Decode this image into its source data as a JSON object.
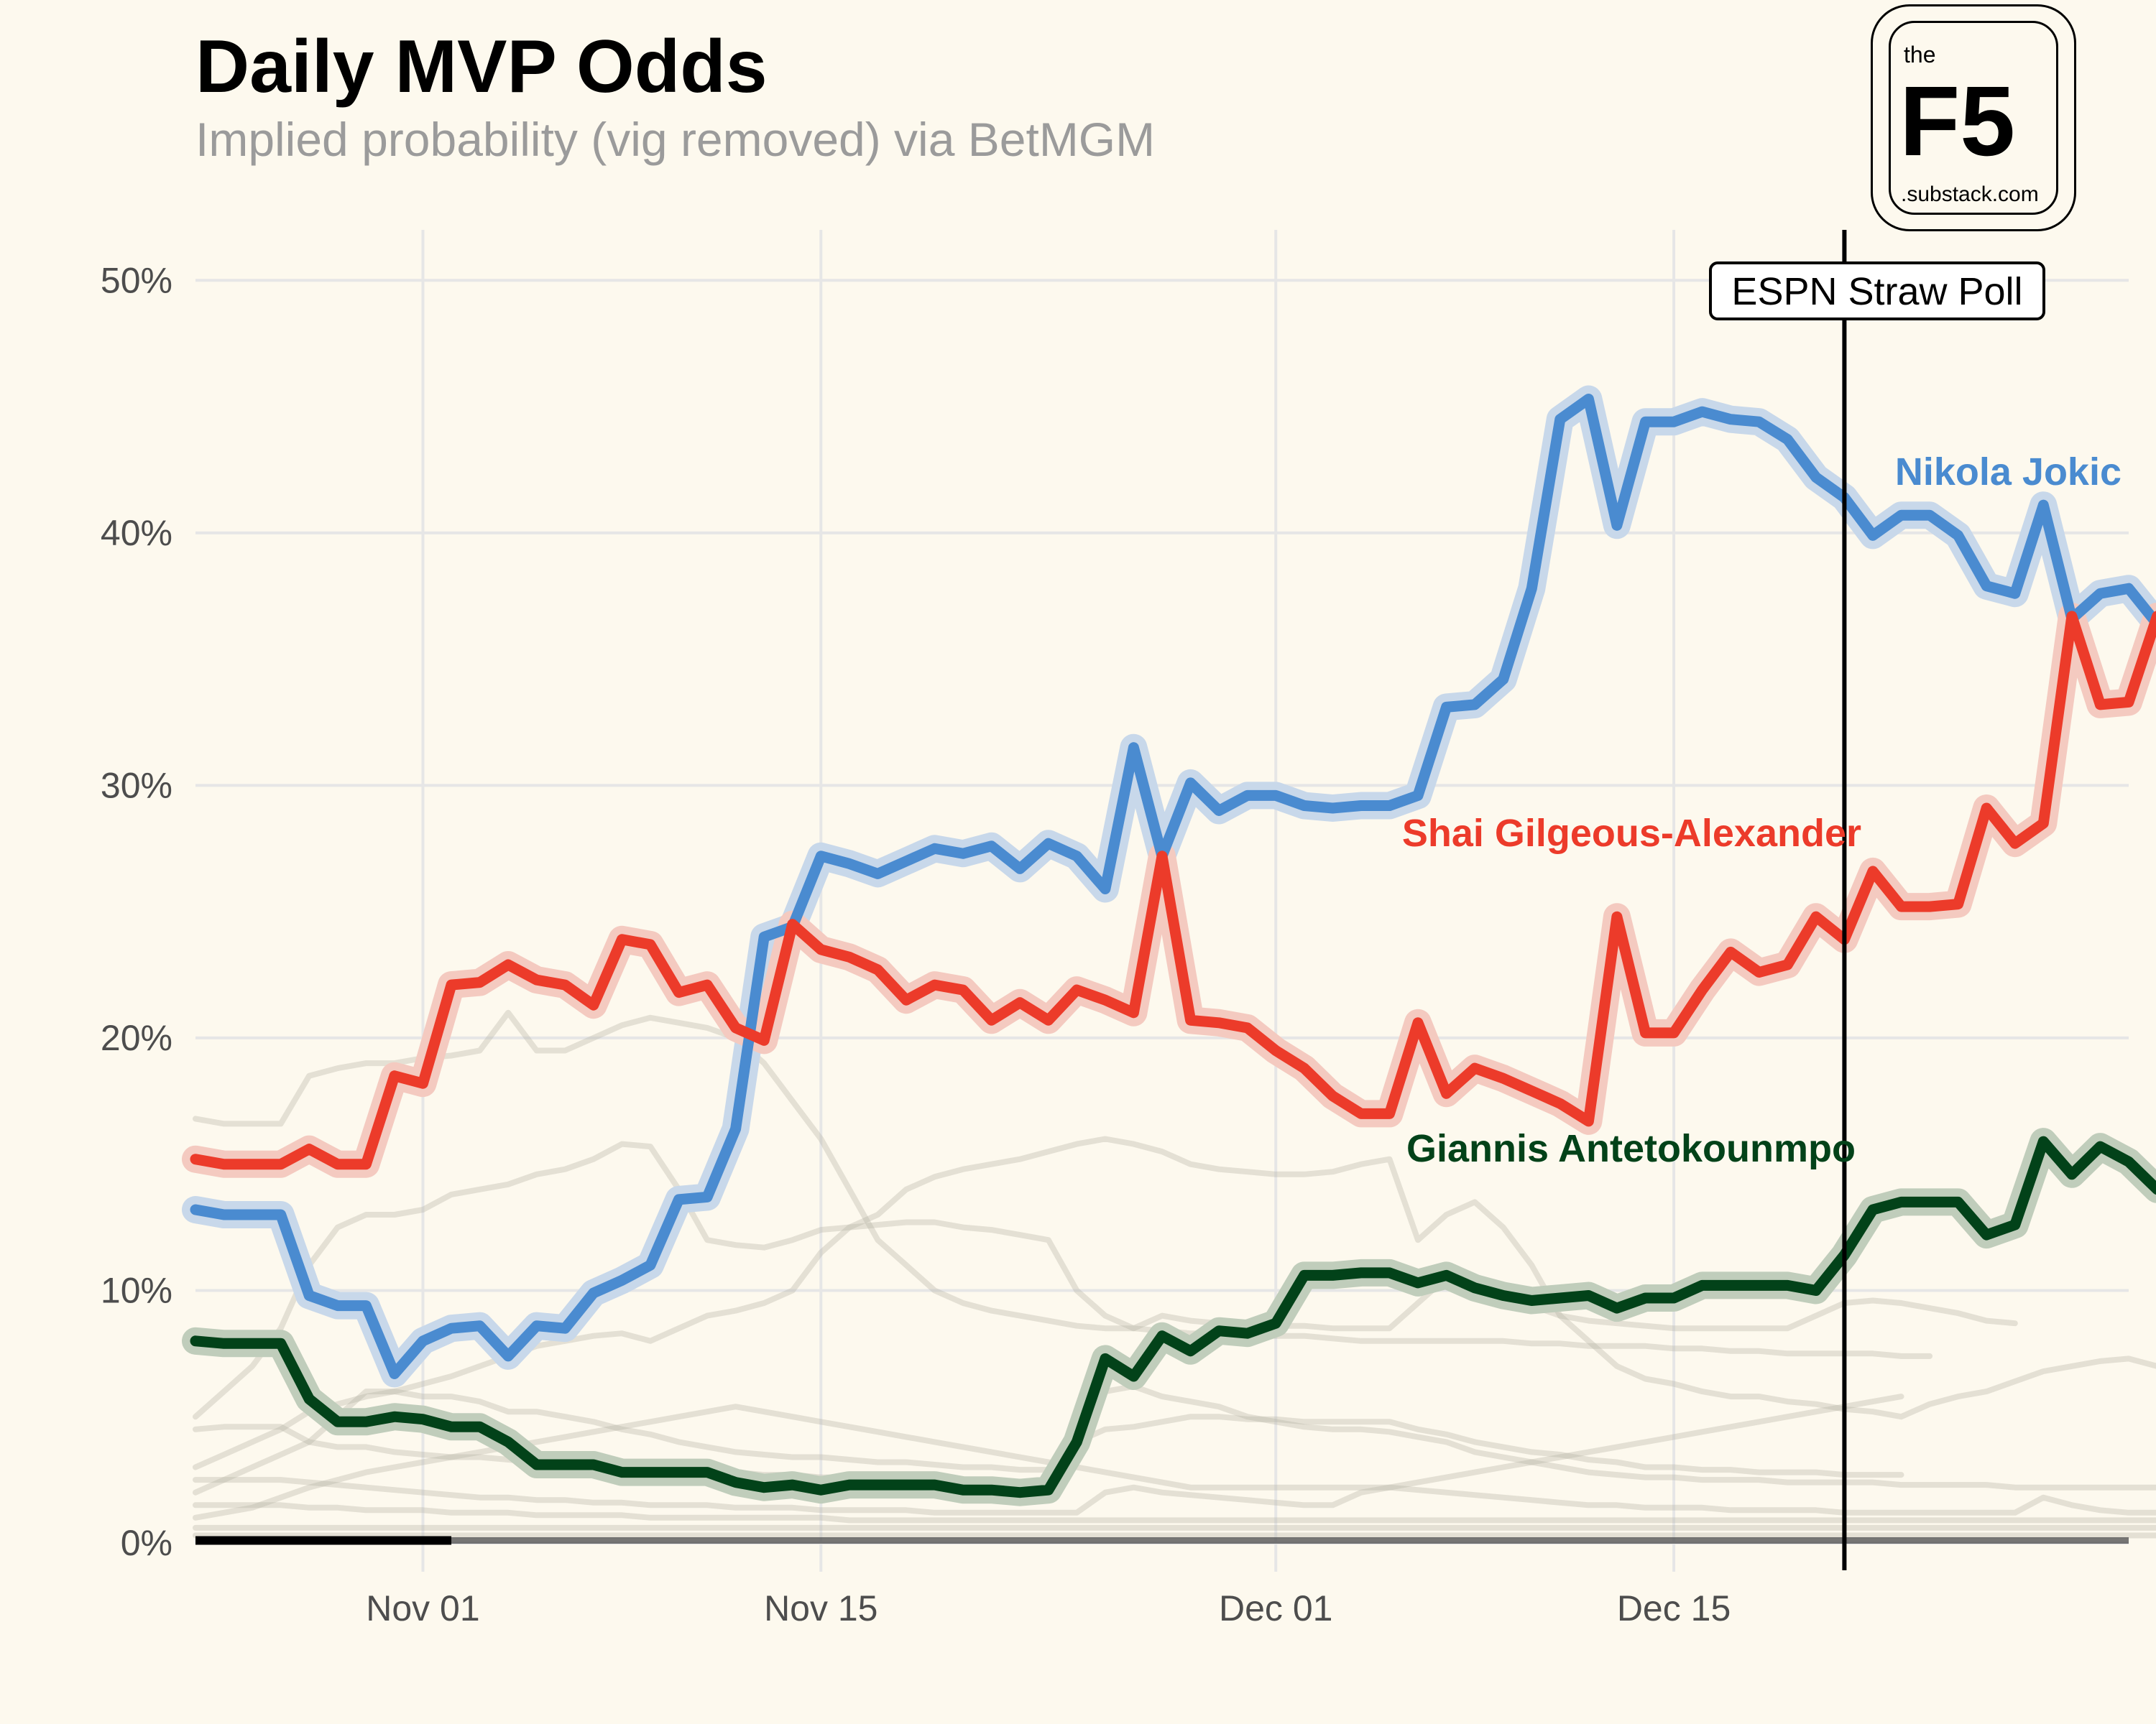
{
  "title": "Daily MVP Odds",
  "subtitle": "Implied probability (vig removed) via BetMGM",
  "logo": {
    "the": "the",
    "f5": "F5",
    "sub": ".substack.com"
  },
  "chart_data": {
    "type": "line",
    "title": "Daily MVP Odds",
    "subtitle": "Implied probability (vig removed) via BetMGM",
    "xlabel": "",
    "ylabel": "",
    "x_start": "2023-10-24",
    "xlim": [
      "2023-10-24",
      "2023-12-31"
    ],
    "ylim": [
      0,
      0.52
    ],
    "x_ticks": [
      {
        "date": "2023-11-01",
        "label": "Nov 01"
      },
      {
        "date": "2023-11-15",
        "label": "Nov 15"
      },
      {
        "date": "2023-12-01",
        "label": "Dec 01"
      },
      {
        "date": "2023-12-15",
        "label": "Dec 15"
      }
    ],
    "y_ticks": [
      {
        "value": 0,
        "label": "0%"
      },
      {
        "value": 0.1,
        "label": "10%"
      },
      {
        "value": 0.2,
        "label": "20%"
      },
      {
        "value": 0.3,
        "label": "30%"
      },
      {
        "value": 0.4,
        "label": "40%"
      },
      {
        "value": 0.5,
        "label": "50%"
      }
    ],
    "grid": true,
    "vline": {
      "date": "2023-12-21",
      "label": "ESPN Straw Poll"
    },
    "series": [
      {
        "name": "Nikola Jokic",
        "color": "#4a8bd0",
        "halo": "#c8d8ea",
        "values": [
          0.132,
          0.13,
          0.13,
          0.13,
          0.098,
          0.094,
          0.094,
          0.067,
          0.08,
          0.085,
          0.086,
          0.074,
          0.086,
          0.085,
          0.099,
          0.104,
          0.11,
          0.136,
          0.137,
          0.164,
          0.24,
          0.244,
          0.272,
          0.269,
          0.265,
          0.27,
          0.275,
          0.273,
          0.276,
          0.267,
          0.277,
          0.272,
          0.259,
          0.315,
          0.272,
          0.301,
          0.29,
          0.296,
          0.296,
          0.292,
          0.291,
          0.292,
          0.292,
          0.296,
          0.331,
          0.332,
          0.342,
          0.378,
          0.445,
          0.453,
          0.403,
          0.444,
          0.444,
          0.448,
          0.445,
          0.444,
          0.437,
          0.422,
          0.414,
          0.399,
          0.407,
          0.407,
          0.399,
          0.379,
          0.376,
          0.411,
          0.366,
          0.376,
          0.378,
          0.364
        ]
      },
      {
        "name": "Shai Gilgeous-Alexander",
        "color": "#ec3b2a",
        "halo": "#f4cac0",
        "values": [
          0.152,
          0.15,
          0.15,
          0.15,
          0.156,
          0.15,
          0.15,
          0.185,
          0.182,
          0.221,
          0.222,
          0.229,
          0.223,
          0.221,
          0.213,
          0.239,
          0.237,
          0.218,
          0.221,
          0.204,
          0.199,
          0.245,
          0.235,
          0.232,
          0.227,
          0.215,
          0.221,
          0.219,
          0.207,
          0.214,
          0.207,
          0.219,
          0.215,
          0.21,
          0.272,
          0.207,
          0.206,
          0.204,
          0.195,
          0.188,
          0.177,
          0.17,
          0.17,
          0.206,
          0.178,
          0.188,
          0.184,
          0.179,
          0.174,
          0.167,
          0.248,
          0.202,
          0.202,
          0.219,
          0.234,
          0.226,
          0.229,
          0.248,
          0.239,
          0.266,
          0.252,
          0.252,
          0.253,
          0.291,
          0.277,
          0.285,
          0.367,
          0.332,
          0.333,
          0.367
        ]
      },
      {
        "name": "Giannis Antetokounmpo",
        "color": "#024219",
        "halo": "#c0cdbb",
        "values": [
          0.08,
          0.079,
          0.079,
          0.079,
          0.057,
          0.048,
          0.048,
          0.05,
          0.049,
          0.046,
          0.046,
          0.04,
          0.031,
          0.031,
          0.031,
          0.028,
          0.028,
          0.028,
          0.028,
          0.024,
          0.022,
          0.023,
          0.021,
          0.023,
          0.023,
          0.023,
          0.023,
          0.021,
          0.021,
          0.02,
          0.021,
          0.04,
          0.073,
          0.066,
          0.082,
          0.076,
          0.084,
          0.083,
          0.087,
          0.106,
          0.106,
          0.107,
          0.107,
          0.103,
          0.106,
          0.101,
          0.098,
          0.096,
          0.097,
          0.098,
          0.093,
          0.097,
          0.097,
          0.102,
          0.102,
          0.102,
          0.102,
          0.1,
          0.114,
          0.132,
          0.135,
          0.135,
          0.135,
          0.122,
          0.126,
          0.159,
          0.146,
          0.157,
          0.151,
          0.14
        ]
      }
    ],
    "background_series": [
      {
        "values": [
          0.168,
          0.166,
          0.166,
          0.166,
          0.185,
          0.188,
          0.19,
          0.19,
          0.192,
          0.193,
          0.195,
          0.21,
          0.195,
          0.195,
          0.2,
          0.205,
          0.208,
          0.206,
          0.204,
          0.2,
          0.19,
          0.175,
          0.16,
          0.14,
          0.12,
          0.11,
          0.1,
          0.095,
          0.092,
          0.09,
          0.088,
          0.086,
          0.085,
          0.085,
          0.084,
          0.083,
          0.083,
          0.082,
          0.082,
          0.082,
          0.081,
          0.08,
          0.08,
          0.08,
          0.08,
          0.08,
          0.08,
          0.079,
          0.079,
          0.078,
          0.078,
          0.078,
          0.077,
          0.077,
          0.076,
          0.076,
          0.075,
          0.075,
          0.075,
          0.075,
          0.074,
          0.074
        ]
      },
      {
        "values": [
          0.05,
          0.06,
          0.07,
          0.085,
          0.11,
          0.125,
          0.13,
          0.13,
          0.132,
          0.138,
          0.14,
          0.142,
          0.146,
          0.148,
          0.152,
          0.158,
          0.157,
          0.14,
          0.12,
          0.118,
          0.117,
          0.12,
          0.124,
          0.125,
          0.126,
          0.127,
          0.127,
          0.125,
          0.124,
          0.122,
          0.12,
          0.1,
          0.09,
          0.085,
          0.09,
          0.088,
          0.087,
          0.087,
          0.086,
          0.086,
          0.085,
          0.085,
          0.085,
          0.095,
          0.105,
          0.104,
          0.1,
          0.094,
          0.09,
          0.088,
          0.087,
          0.086,
          0.085,
          0.085,
          0.085,
          0.085,
          0.085,
          0.09,
          0.095,
          0.096,
          0.095,
          0.093,
          0.091,
          0.088,
          0.087
        ]
      },
      {
        "values": [
          0.03,
          0.035,
          0.04,
          0.045,
          0.052,
          0.055,
          0.058,
          0.06,
          0.063,
          0.066,
          0.07,
          0.074,
          0.078,
          0.08,
          0.082,
          0.083,
          0.08,
          0.085,
          0.09,
          0.092,
          0.095,
          0.1,
          0.115,
          0.125,
          0.13,
          0.14,
          0.145,
          0.148,
          0.15,
          0.152,
          0.155,
          0.158,
          0.16,
          0.158,
          0.155,
          0.15,
          0.148,
          0.147,
          0.146,
          0.146,
          0.147,
          0.15,
          0.152,
          0.12,
          0.13,
          0.135,
          0.125,
          0.11,
          0.09,
          0.08,
          0.07,
          0.065,
          0.063,
          0.06,
          0.058,
          0.058,
          0.056,
          0.055,
          0.053,
          0.052,
          0.05,
          0.055,
          0.058,
          0.06,
          0.064,
          0.068,
          0.07,
          0.072,
          0.073,
          0.07
        ]
      },
      {
        "values": [
          0.02,
          0.025,
          0.03,
          0.035,
          0.04,
          0.05,
          0.06,
          0.06,
          0.058,
          0.058,
          0.056,
          0.052,
          0.052,
          0.05,
          0.048,
          0.045,
          0.043,
          0.04,
          0.038,
          0.036,
          0.035,
          0.034,
          0.034,
          0.033,
          0.032,
          0.032,
          0.031,
          0.03,
          0.03,
          0.029,
          0.029,
          0.045,
          0.06,
          0.062,
          0.058,
          0.056,
          0.054,
          0.05,
          0.048,
          0.046,
          0.045,
          0.045,
          0.044,
          0.042,
          0.04,
          0.036,
          0.034,
          0.032,
          0.03,
          0.028,
          0.027,
          0.026,
          0.026,
          0.025,
          0.025,
          0.025,
          0.024,
          0.024,
          0.024,
          0.024,
          0.023,
          0.023,
          0.023,
          0.023,
          0.022,
          0.022,
          0.022,
          0.022,
          0.022,
          0.022
        ]
      },
      {
        "values": [
          0.045,
          0.046,
          0.046,
          0.046,
          0.04,
          0.038,
          0.038,
          0.036,
          0.035,
          0.034,
          0.034,
          0.033,
          0.032,
          0.031,
          0.03,
          0.03,
          0.029,
          0.029,
          0.028,
          0.028,
          0.027,
          0.027,
          0.026,
          0.026,
          0.026,
          0.025,
          0.025,
          0.025,
          0.024,
          0.024,
          0.024,
          0.04,
          0.045,
          0.046,
          0.048,
          0.05,
          0.05,
          0.049,
          0.049,
          0.048,
          0.048,
          0.048,
          0.048,
          0.045,
          0.043,
          0.04,
          0.038,
          0.036,
          0.035,
          0.033,
          0.032,
          0.03,
          0.03,
          0.029,
          0.029,
          0.028,
          0.028,
          0.028,
          0.027,
          0.027,
          0.027
        ]
      },
      {
        "values": [
          0.01,
          0.012,
          0.014,
          0.018,
          0.022,
          0.025,
          0.028,
          0.03,
          0.032,
          0.034,
          0.036,
          0.038,
          0.04,
          0.042,
          0.044,
          0.046,
          0.048,
          0.05,
          0.052,
          0.054,
          0.052,
          0.05,
          0.048,
          0.046,
          0.044,
          0.042,
          0.04,
          0.038,
          0.036,
          0.034,
          0.032,
          0.03,
          0.028,
          0.026,
          0.024,
          0.022,
          0.022,
          0.022,
          0.022,
          0.022,
          0.022,
          0.022,
          0.022,
          0.024,
          0.026,
          0.028,
          0.03,
          0.032,
          0.034,
          0.036,
          0.038,
          0.04,
          0.042,
          0.044,
          0.046,
          0.048,
          0.05,
          0.052,
          0.054,
          0.056,
          0.058
        ]
      },
      {
        "values": [
          0.025,
          0.025,
          0.025,
          0.025,
          0.024,
          0.023,
          0.022,
          0.021,
          0.02,
          0.019,
          0.018,
          0.018,
          0.017,
          0.017,
          0.016,
          0.016,
          0.015,
          0.015,
          0.015,
          0.014,
          0.014,
          0.014,
          0.013,
          0.013,
          0.013,
          0.013,
          0.012,
          0.012,
          0.012,
          0.012,
          0.012,
          0.012,
          0.02,
          0.022,
          0.02,
          0.019,
          0.018,
          0.017,
          0.016,
          0.015,
          0.015,
          0.02,
          0.022,
          0.021,
          0.02,
          0.019,
          0.018,
          0.017,
          0.016,
          0.015,
          0.015,
          0.014,
          0.014,
          0.014,
          0.013,
          0.013,
          0.013,
          0.013,
          0.012,
          0.012,
          0.012,
          0.012,
          0.012,
          0.012,
          0.012,
          0.018,
          0.015,
          0.013,
          0.012,
          0.012
        ]
      },
      {
        "values": [
          0.015,
          0.015,
          0.015,
          0.015,
          0.014,
          0.014,
          0.013,
          0.013,
          0.013,
          0.012,
          0.012,
          0.012,
          0.011,
          0.011,
          0.011,
          0.011,
          0.01,
          0.01,
          0.01,
          0.01,
          0.01,
          0.01,
          0.01,
          0.009,
          0.009,
          0.009,
          0.009,
          0.009,
          0.009,
          0.009,
          0.009,
          0.009,
          0.009,
          0.009,
          0.009,
          0.009,
          0.009,
          0.009,
          0.009,
          0.009,
          0.009,
          0.009,
          0.009,
          0.009,
          0.009,
          0.009,
          0.009,
          0.009,
          0.009,
          0.009,
          0.009,
          0.009,
          0.009,
          0.009,
          0.009,
          0.009,
          0.009,
          0.009,
          0.009,
          0.009,
          0.009,
          0.009,
          0.009,
          0.009,
          0.009,
          0.009,
          0.009,
          0.009,
          0.009,
          0.009
        ]
      },
      {
        "values": [
          0.006,
          0.006,
          0.006,
          0.006,
          0.006,
          0.006,
          0.006,
          0.006,
          0.006,
          0.006,
          0.006,
          0.006,
          0.006,
          0.006,
          0.006,
          0.006,
          0.006,
          0.006,
          0.006,
          0.006,
          0.006,
          0.006,
          0.006,
          0.006,
          0.006,
          0.006,
          0.006,
          0.006,
          0.006,
          0.006,
          0.006,
          0.006,
          0.006,
          0.006,
          0.006,
          0.006,
          0.006,
          0.006,
          0.006,
          0.006,
          0.006,
          0.006,
          0.006,
          0.006,
          0.006,
          0.006,
          0.006,
          0.006,
          0.006,
          0.006,
          0.006,
          0.006,
          0.006,
          0.006,
          0.006,
          0.006,
          0.006,
          0.006,
          0.006,
          0.006,
          0.006,
          0.006,
          0.006,
          0.006,
          0.006,
          0.006,
          0.006,
          0.006,
          0.006,
          0.006
        ]
      },
      {
        "values": [
          0.003,
          0.003,
          0.003,
          0.003,
          0.003,
          0.003,
          0.003,
          0.003,
          0.003,
          0.003,
          0.003,
          0.003,
          0.003,
          0.003,
          0.003,
          0.003,
          0.003,
          0.003,
          0.003,
          0.003,
          0.003,
          0.003,
          0.003,
          0.003,
          0.003,
          0.003,
          0.003,
          0.003,
          0.003,
          0.003,
          0.003,
          0.003,
          0.003,
          0.003,
          0.003,
          0.003,
          0.003,
          0.003,
          0.003,
          0.003,
          0.003,
          0.003,
          0.003,
          0.003,
          0.003,
          0.003,
          0.003,
          0.003,
          0.003,
          0.003,
          0.003,
          0.003,
          0.003,
          0.003,
          0.003,
          0.003,
          0.003,
          0.003,
          0.003,
          0.003,
          0.003,
          0.003,
          0.003,
          0.003,
          0.003,
          0.003,
          0.003,
          0.003,
          0.003,
          0.003
        ]
      }
    ]
  }
}
